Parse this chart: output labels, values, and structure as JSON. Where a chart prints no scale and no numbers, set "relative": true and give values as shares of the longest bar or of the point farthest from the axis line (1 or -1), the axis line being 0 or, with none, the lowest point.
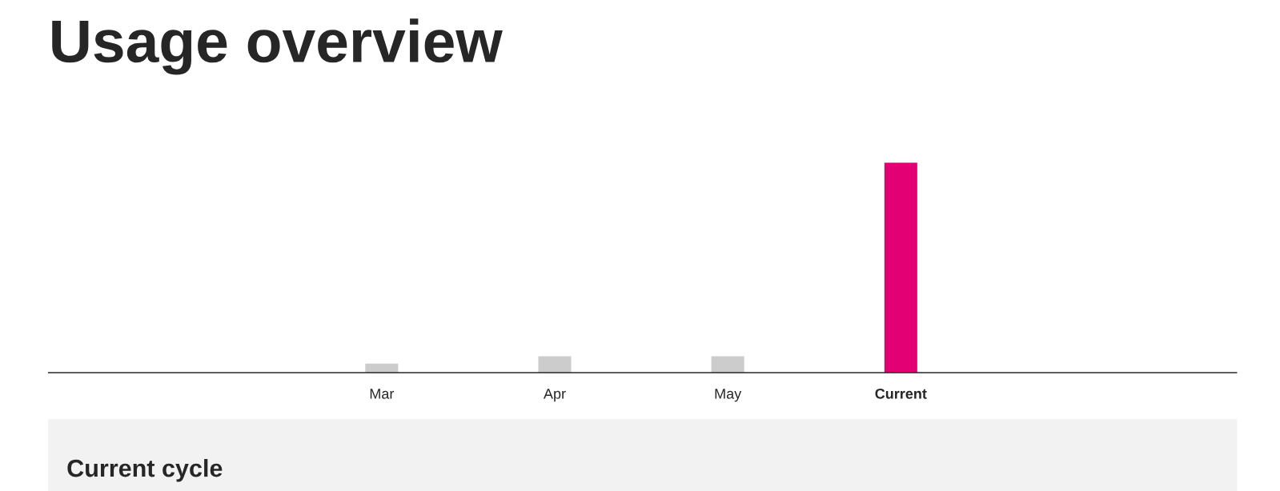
{
  "chart_data": {
    "type": "bar",
    "title": "Usage overview",
    "relative": true,
    "categories": [
      null,
      "Mar",
      "Apr",
      "May",
      "Current",
      null
    ],
    "values": [
      null,
      0.043,
      0.078,
      0.078,
      1,
      null
    ],
    "colors": [
      "#cccccc",
      "#cccccc",
      "#cccccc",
      "#cccccc",
      "#e20074",
      "#cccccc"
    ],
    "annotations": [
      "Current cycle"
    ],
    "grid": false,
    "legend": false
  }
}
